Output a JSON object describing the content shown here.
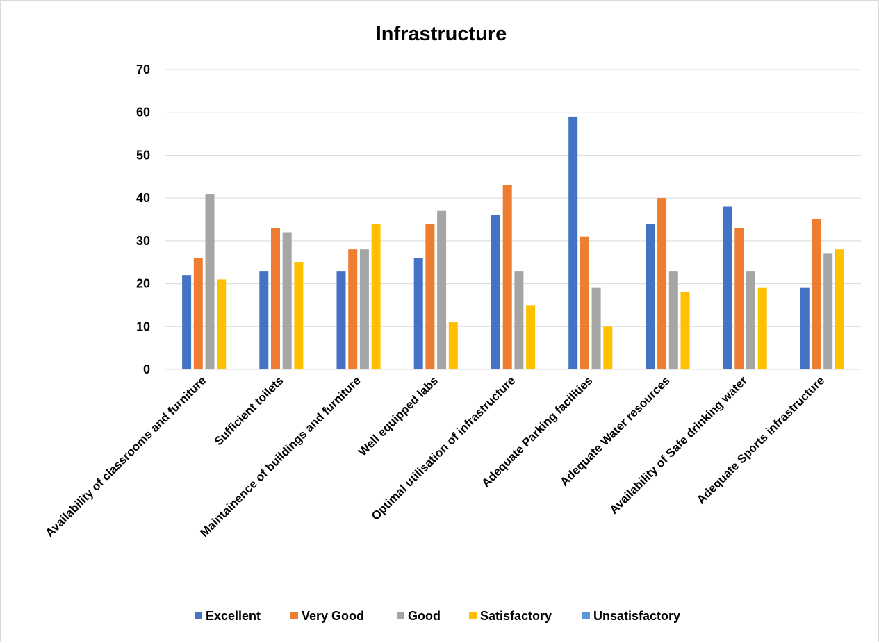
{
  "chart_data": {
    "type": "bar",
    "title": "Infrastructure",
    "xlabel": "",
    "ylabel": "",
    "ylim": [
      0,
      70
    ],
    "yticks": [
      0,
      10,
      20,
      30,
      40,
      50,
      60,
      70
    ],
    "grid": true,
    "legend_position": "bottom",
    "categories": [
      "Availability of classrooms and furniture",
      "Sufficient toilets",
      "Maintainence of buildings and furniture",
      "Well equipped labs",
      "Optimal utilisation of infrastructure",
      "Adequate Parking facilities",
      "Adequate Water resources",
      "Availability of Safe drinking water",
      "Adequate Sports infrastructure"
    ],
    "series": [
      {
        "name": "Excellent",
        "color": "#4472c4",
        "values": [
          22,
          23,
          23,
          26,
          36,
          59,
          34,
          38,
          19
        ]
      },
      {
        "name": "Very Good",
        "color": "#ed7d31",
        "values": [
          26,
          33,
          28,
          34,
          43,
          31,
          40,
          33,
          35
        ]
      },
      {
        "name": "Good",
        "color": "#a5a5a5",
        "values": [
          41,
          32,
          28,
          37,
          23,
          19,
          23,
          23,
          27
        ]
      },
      {
        "name": "Satisfactory",
        "color": "#ffc000",
        "values": [
          21,
          25,
          34,
          11,
          15,
          10,
          18,
          19,
          28
        ]
      },
      {
        "name": "Unsatisfactory",
        "color": "#5b9bd5",
        "values": [
          0,
          0,
          0,
          0,
          0,
          0,
          0,
          0,
          0
        ]
      }
    ]
  }
}
